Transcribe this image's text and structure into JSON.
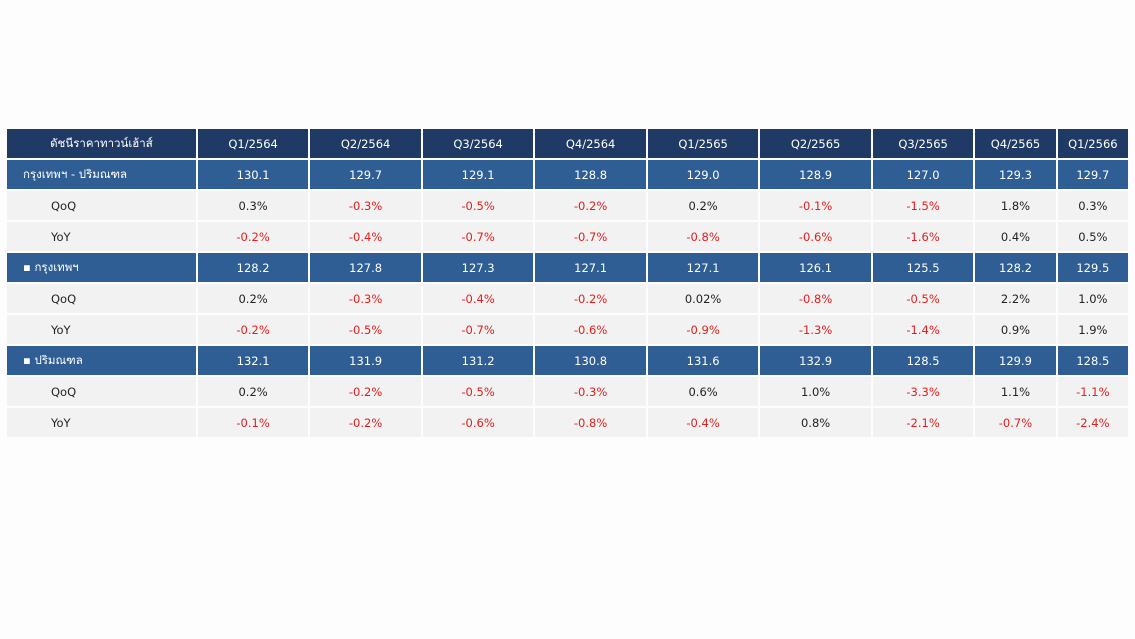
{
  "table": {
    "header_label": "ดัชนีราคาทาวน์เฮ้าส์",
    "columns": [
      "Q1/2564",
      "Q2/2564",
      "Q3/2564",
      "Q4/2564",
      "Q1/2565",
      "Q2/2565",
      "Q3/2565",
      "Q4/2565",
      "Q1/2566"
    ],
    "rows": [
      {
        "type": "main",
        "label": "กรุงเทพฯ - ปริมณฑล",
        "values": [
          "130.1",
          "129.7",
          "129.1",
          "128.8",
          "129.0",
          "128.9",
          "127.0",
          "129.3",
          "129.7"
        ]
      },
      {
        "type": "sub",
        "label": "QoQ",
        "values": [
          "0.3%",
          "-0.3%",
          "-0.5%",
          "-0.2%",
          "0.2%",
          "-0.1%",
          "-1.5%",
          "1.8%",
          "0.3%"
        ]
      },
      {
        "type": "sub",
        "label": "YoY",
        "values": [
          "-0.2%",
          "-0.4%",
          "-0.7%",
          "-0.7%",
          "-0.8%",
          "-0.6%",
          "-1.6%",
          "0.4%",
          "0.5%"
        ]
      },
      {
        "type": "main",
        "label": "▪ กรุงเทพฯ",
        "values": [
          "128.2",
          "127.8",
          "127.3",
          "127.1",
          "127.1",
          "126.1",
          "125.5",
          "128.2",
          "129.5"
        ]
      },
      {
        "type": "sub",
        "label": "QoQ",
        "values": [
          "0.2%",
          "-0.3%",
          "-0.4%",
          "-0.2%",
          "0.02%",
          "-0.8%",
          "-0.5%",
          "2.2%",
          "1.0%"
        ]
      },
      {
        "type": "sub",
        "label": "YoY",
        "values": [
          "-0.2%",
          "-0.5%",
          "-0.7%",
          "-0.6%",
          "-0.9%",
          "-1.3%",
          "-1.4%",
          "0.9%",
          "1.9%"
        ]
      },
      {
        "type": "main",
        "label": "▪ ปริมณฑล",
        "values": [
          "132.1",
          "131.9",
          "131.2",
          "130.8",
          "131.6",
          "132.9",
          "128.5",
          "129.9",
          "128.5"
        ]
      },
      {
        "type": "sub",
        "label": "QoQ",
        "values": [
          "0.2%",
          "-0.2%",
          "-0.5%",
          "-0.3%",
          "0.6%",
          "1.0%",
          "-3.3%",
          "1.1%",
          "-1.1%"
        ]
      },
      {
        "type": "sub",
        "label": "YoY",
        "values": [
          "-0.1%",
          "-0.2%",
          "-0.6%",
          "-0.8%",
          "-0.4%",
          "0.8%",
          "-2.1%",
          "-0.7%",
          "-2.4%"
        ]
      }
    ],
    "colors": {
      "header": "#1f3a64",
      "main_row": "#2f5e94",
      "sub_row": "#f2f2f2",
      "negative": "#e0201f"
    }
  }
}
